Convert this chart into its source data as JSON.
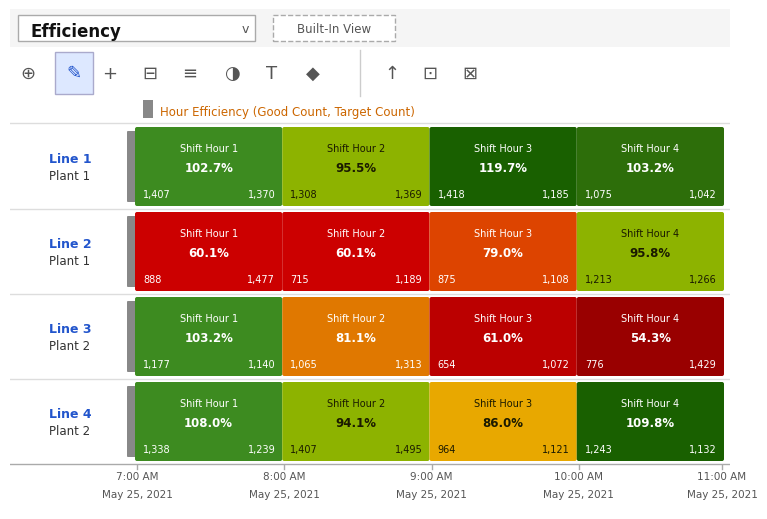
{
  "title_dropdown": "Efficiency",
  "built_in_view": "Built-In View",
  "legend_text": "Hour Efficiency (Good Count, Target Count)",
  "x_ticks": [
    "7:00 AM\nMay 25, 2021",
    "8:00 AM\nMay 25, 2021",
    "9:00 AM\nMay 25, 2021",
    "10:00 AM\nMay 25, 2021",
    "11:00 AM\nMay 25, 2021"
  ],
  "rows": [
    {
      "line_label": "Line 1",
      "plant_label": "Plant 1",
      "cells": [
        {
          "shift": "Shift Hour 1",
          "pct": "102.7%",
          "good": "1,407",
          "target": "1,370",
          "color": "#3d8b20",
          "text_color": "#ffffff"
        },
        {
          "shift": "Shift Hour 2",
          "pct": "95.5%",
          "good": "1,308",
          "target": "1,369",
          "color": "#8db300",
          "text_color": "#1a1a00"
        },
        {
          "shift": "Shift Hour 3",
          "pct": "119.7%",
          "good": "1,418",
          "target": "1,185",
          "color": "#196000",
          "text_color": "#ffffff"
        },
        {
          "shift": "Shift Hour 4",
          "pct": "103.2%",
          "good": "1,075",
          "target": "1,042",
          "color": "#2d6e0a",
          "text_color": "#ffffff"
        }
      ]
    },
    {
      "line_label": "Line 2",
      "plant_label": "Plant 1",
      "cells": [
        {
          "shift": "Shift Hour 1",
          "pct": "60.1%",
          "good": "888",
          "target": "1,477",
          "color": "#cc0000",
          "text_color": "#ffffff"
        },
        {
          "shift": "Shift Hour 2",
          "pct": "60.1%",
          "good": "715",
          "target": "1,189",
          "color": "#cc0000",
          "text_color": "#ffffff"
        },
        {
          "shift": "Shift Hour 3",
          "pct": "79.0%",
          "good": "875",
          "target": "1,108",
          "color": "#dd4400",
          "text_color": "#ffffff"
        },
        {
          "shift": "Shift Hour 4",
          "pct": "95.8%",
          "good": "1,213",
          "target": "1,266",
          "color": "#8db300",
          "text_color": "#1a1a00"
        }
      ]
    },
    {
      "line_label": "Line 3",
      "plant_label": "Plant 2",
      "cells": [
        {
          "shift": "Shift Hour 1",
          "pct": "103.2%",
          "good": "1,177",
          "target": "1,140",
          "color": "#3d8b20",
          "text_color": "#ffffff"
        },
        {
          "shift": "Shift Hour 2",
          "pct": "81.1%",
          "good": "1,065",
          "target": "1,313",
          "color": "#e07800",
          "text_color": "#ffffff"
        },
        {
          "shift": "Shift Hour 3",
          "pct": "61.0%",
          "good": "654",
          "target": "1,072",
          "color": "#bb0000",
          "text_color": "#ffffff"
        },
        {
          "shift": "Shift Hour 4",
          "pct": "54.3%",
          "good": "776",
          "target": "1,429",
          "color": "#990000",
          "text_color": "#ffffff"
        }
      ]
    },
    {
      "line_label": "Line 4",
      "plant_label": "Plant 2",
      "cells": [
        {
          "shift": "Shift Hour 1",
          "pct": "108.0%",
          "good": "1,338",
          "target": "1,239",
          "color": "#3d8b20",
          "text_color": "#ffffff"
        },
        {
          "shift": "Shift Hour 2",
          "pct": "94.1%",
          "good": "1,407",
          "target": "1,495",
          "color": "#8db300",
          "text_color": "#1a1a00"
        },
        {
          "shift": "Shift Hour 3",
          "pct": "86.0%",
          "good": "964",
          "target": "1,121",
          "color": "#e8a800",
          "text_color": "#1a1a00"
        },
        {
          "shift": "Shift Hour 4",
          "pct": "109.8%",
          "good": "1,243",
          "target": "1,132",
          "color": "#196000",
          "text_color": "#ffffff"
        }
      ]
    }
  ],
  "bg_color": "#ffffff",
  "label_color_line": "#2255cc",
  "label_color_plant": "#333333",
  "axis_tick_color": "#555555",
  "separator_color": "#dddddd",
  "divider_color": "#888888"
}
